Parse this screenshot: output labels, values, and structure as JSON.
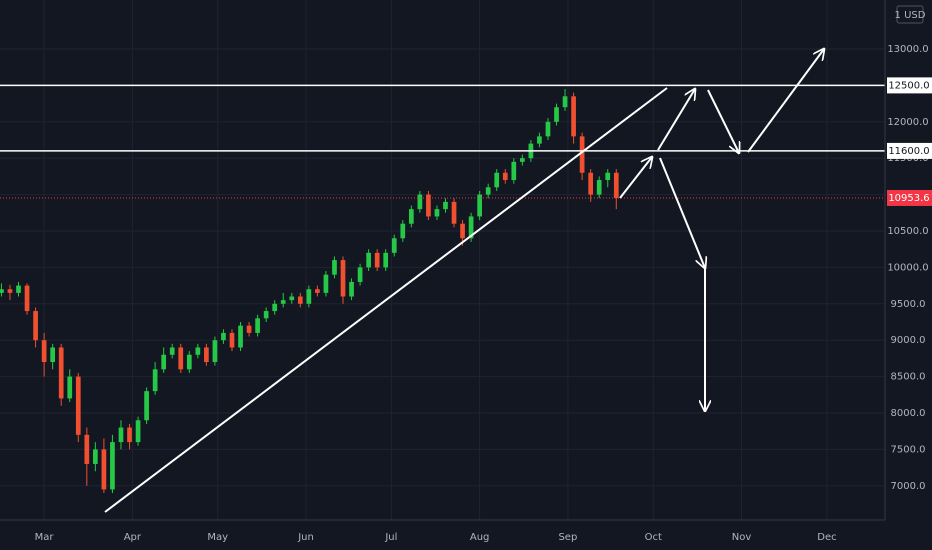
{
  "chart_data": {
    "type": "candlestick",
    "currency": "1 USD",
    "x": [
      46,
      49,
      52,
      55,
      58,
      61,
      64,
      67,
      70,
      73,
      76,
      79,
      82,
      85,
      88,
      91,
      94,
      97,
      100,
      103,
      106,
      109,
      112,
      115,
      118,
      121,
      124,
      127,
      130,
      133,
      136,
      139,
      142,
      145,
      148,
      151,
      154,
      157,
      160,
      163,
      166,
      169,
      172,
      175,
      178,
      181,
      184,
      187,
      190,
      193,
      196,
      199,
      202,
      205,
      208,
      211,
      214,
      217,
      220,
      223,
      226,
      229,
      232,
      235,
      238,
      241,
      244,
      247,
      250,
      253,
      256,
      259,
      262
    ],
    "open": [
      9650,
      9700,
      9650,
      9750,
      9400,
      9000,
      8700,
      8900,
      8200,
      8500,
      7700,
      7300,
      7500,
      6950,
      7600,
      7800,
      7600,
      7900,
      8300,
      8600,
      8800,
      8900,
      8600,
      8800,
      8900,
      8700,
      9000,
      9100,
      8900,
      9200,
      9100,
      9300,
      9400,
      9500,
      9550,
      9600,
      9500,
      9700,
      9650,
      9900,
      10100,
      9600,
      9800,
      10000,
      10200,
      10000,
      10200,
      10400,
      10600,
      10800,
      11000,
      10700,
      10800,
      10900,
      10600,
      10400,
      10700,
      11000,
      11100,
      11300,
      11200,
      11450,
      11500,
      11700,
      11800,
      12000,
      12200,
      12350,
      11800,
      11300,
      11000,
      11200,
      11300
    ],
    "high": [
      9780,
      9760,
      9800,
      9780,
      9450,
      9100,
      8950,
      8950,
      8600,
      8550,
      7800,
      7600,
      7650,
      7700,
      7900,
      7850,
      7950,
      8350,
      8700,
      8900,
      8950,
      8950,
      8850,
      8950,
      8950,
      9050,
      9150,
      9150,
      9250,
      9250,
      9350,
      9450,
      9550,
      9650,
      9650,
      9650,
      9750,
      9750,
      9950,
      10150,
      10150,
      9850,
      10050,
      10250,
      10250,
      10250,
      10450,
      10650,
      10850,
      11050,
      11050,
      10850,
      10950,
      10950,
      10650,
      10750,
      11050,
      11150,
      11350,
      11350,
      11500,
      11550,
      11750,
      11850,
      12050,
      12250,
      12450,
      12400,
      11850,
      11350,
      11250,
      11350,
      11350
    ],
    "low": [
      9600,
      9550,
      9600,
      9350,
      8900,
      8500,
      8600,
      8100,
      8150,
      7600,
      7000,
      7200,
      6900,
      6900,
      7500,
      7500,
      7550,
      7850,
      8250,
      8550,
      8750,
      8550,
      8550,
      8750,
      8650,
      8650,
      8950,
      8850,
      8850,
      9050,
      9050,
      9250,
      9350,
      9450,
      9500,
      9450,
      9450,
      9600,
      9600,
      9850,
      9500,
      9550,
      9750,
      9950,
      9950,
      9950,
      10150,
      10350,
      10550,
      10750,
      10650,
      10650,
      10750,
      10550,
      10300,
      10350,
      10650,
      10950,
      11050,
      11150,
      11150,
      11400,
      11450,
      11650,
      11750,
      11950,
      12150,
      11700,
      11200,
      10900,
      10950,
      11100,
      10800
    ],
    "close": [
      9700,
      9650,
      9750,
      9400,
      9000,
      8700,
      8900,
      8200,
      8500,
      7700,
      7300,
      7500,
      6950,
      7600,
      7800,
      7600,
      7900,
      8300,
      8600,
      8800,
      8900,
      8600,
      8800,
      8900,
      8700,
      9000,
      9100,
      8900,
      9200,
      9100,
      9300,
      9400,
      9500,
      9550,
      9600,
      9500,
      9700,
      9650,
      9900,
      10100,
      9600,
      9800,
      10000,
      10200,
      10000,
      10200,
      10400,
      10600,
      10800,
      11000,
      10700,
      10800,
      10900,
      10600,
      10400,
      10700,
      11000,
      11100,
      11300,
      11200,
      11450,
      11500,
      11700,
      11800,
      12000,
      12200,
      12350,
      11800,
      11300,
      11000,
      11200,
      11300,
      10953.6
    ],
    "up_color": "#26c947",
    "down_color": "#f0502f",
    "xlim": [
      45.5,
      356.4
    ],
    "xticks": [
      {
        "value": 61,
        "label": "Mar"
      },
      {
        "value": 92,
        "label": "Apr"
      },
      {
        "value": 122,
        "label": "May"
      },
      {
        "value": 153,
        "label": "Jun"
      },
      {
        "value": 183,
        "label": "Jul"
      },
      {
        "value": 214,
        "label": "Aug"
      },
      {
        "value": 245,
        "label": "Sep"
      },
      {
        "value": 275,
        "label": "Oct"
      },
      {
        "value": 306,
        "label": "Nov"
      },
      {
        "value": 336,
        "label": "Dec"
      }
    ],
    "ylim": [
      6530,
      13673
    ],
    "yticks": [
      {
        "value": 7000,
        "label": "7000.0"
      },
      {
        "value": 7500,
        "label": "7500.0"
      },
      {
        "value": 8000,
        "label": "8000.0"
      },
      {
        "value": 8500,
        "label": "8500.0"
      },
      {
        "value": 9000,
        "label": "9000.0"
      },
      {
        "value": 9500,
        "label": "9500.0"
      },
      {
        "value": 10000,
        "label": "10000.0"
      },
      {
        "value": 10500,
        "label": "10500.0"
      },
      {
        "value": 11000,
        "label": "11000.0"
      },
      {
        "value": 11500,
        "label": "11500.0"
      },
      {
        "value": 12000,
        "label": "12000.0"
      },
      {
        "value": 12500,
        "label": "12500.0"
      },
      {
        "value": 13000,
        "label": "13000.0"
      }
    ],
    "grid": true,
    "levels": [
      {
        "value": 12500,
        "label": "12500.0"
      },
      {
        "value": 11600,
        "label": "11600.0"
      }
    ],
    "last_price": {
      "value": 10953.6,
      "label": "10953.6",
      "color": "#f23645"
    }
  }
}
